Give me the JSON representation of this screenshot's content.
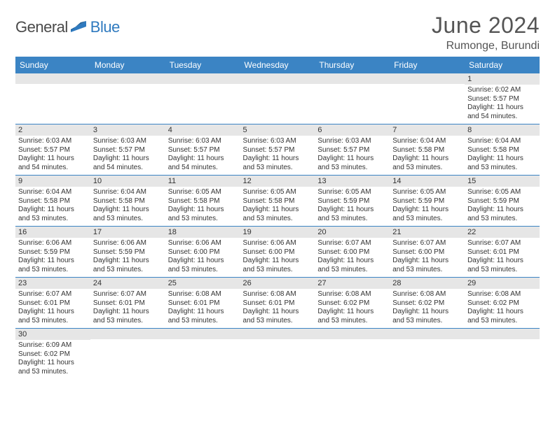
{
  "brand": {
    "part1": "General",
    "part2": "Blue",
    "color_dark": "#4a4a4a",
    "color_blue": "#2f7abf"
  },
  "title": "June 2024",
  "location": "Rumonge, Burundi",
  "header_bg": "#3b84c4",
  "daynum_bg": "#e6e6e6",
  "border_color": "#3b84c4",
  "columns": [
    "Sunday",
    "Monday",
    "Tuesday",
    "Wednesday",
    "Thursday",
    "Friday",
    "Saturday"
  ],
  "weeks": [
    [
      {
        "n": "",
        "lines": []
      },
      {
        "n": "",
        "lines": []
      },
      {
        "n": "",
        "lines": []
      },
      {
        "n": "",
        "lines": []
      },
      {
        "n": "",
        "lines": []
      },
      {
        "n": "",
        "lines": []
      },
      {
        "n": "1",
        "lines": [
          "Sunrise: 6:02 AM",
          "Sunset: 5:57 PM",
          "Daylight: 11 hours and 54 minutes."
        ]
      }
    ],
    [
      {
        "n": "2",
        "lines": [
          "Sunrise: 6:03 AM",
          "Sunset: 5:57 PM",
          "Daylight: 11 hours and 54 minutes."
        ]
      },
      {
        "n": "3",
        "lines": [
          "Sunrise: 6:03 AM",
          "Sunset: 5:57 PM",
          "Daylight: 11 hours and 54 minutes."
        ]
      },
      {
        "n": "4",
        "lines": [
          "Sunrise: 6:03 AM",
          "Sunset: 5:57 PM",
          "Daylight: 11 hours and 54 minutes."
        ]
      },
      {
        "n": "5",
        "lines": [
          "Sunrise: 6:03 AM",
          "Sunset: 5:57 PM",
          "Daylight: 11 hours and 53 minutes."
        ]
      },
      {
        "n": "6",
        "lines": [
          "Sunrise: 6:03 AM",
          "Sunset: 5:57 PM",
          "Daylight: 11 hours and 53 minutes."
        ]
      },
      {
        "n": "7",
        "lines": [
          "Sunrise: 6:04 AM",
          "Sunset: 5:58 PM",
          "Daylight: 11 hours and 53 minutes."
        ]
      },
      {
        "n": "8",
        "lines": [
          "Sunrise: 6:04 AM",
          "Sunset: 5:58 PM",
          "Daylight: 11 hours and 53 minutes."
        ]
      }
    ],
    [
      {
        "n": "9",
        "lines": [
          "Sunrise: 6:04 AM",
          "Sunset: 5:58 PM",
          "Daylight: 11 hours and 53 minutes."
        ]
      },
      {
        "n": "10",
        "lines": [
          "Sunrise: 6:04 AM",
          "Sunset: 5:58 PM",
          "Daylight: 11 hours and 53 minutes."
        ]
      },
      {
        "n": "11",
        "lines": [
          "Sunrise: 6:05 AM",
          "Sunset: 5:58 PM",
          "Daylight: 11 hours and 53 minutes."
        ]
      },
      {
        "n": "12",
        "lines": [
          "Sunrise: 6:05 AM",
          "Sunset: 5:58 PM",
          "Daylight: 11 hours and 53 minutes."
        ]
      },
      {
        "n": "13",
        "lines": [
          "Sunrise: 6:05 AM",
          "Sunset: 5:59 PM",
          "Daylight: 11 hours and 53 minutes."
        ]
      },
      {
        "n": "14",
        "lines": [
          "Sunrise: 6:05 AM",
          "Sunset: 5:59 PM",
          "Daylight: 11 hours and 53 minutes."
        ]
      },
      {
        "n": "15",
        "lines": [
          "Sunrise: 6:05 AM",
          "Sunset: 5:59 PM",
          "Daylight: 11 hours and 53 minutes."
        ]
      }
    ],
    [
      {
        "n": "16",
        "lines": [
          "Sunrise: 6:06 AM",
          "Sunset: 5:59 PM",
          "Daylight: 11 hours and 53 minutes."
        ]
      },
      {
        "n": "17",
        "lines": [
          "Sunrise: 6:06 AM",
          "Sunset: 5:59 PM",
          "Daylight: 11 hours and 53 minutes."
        ]
      },
      {
        "n": "18",
        "lines": [
          "Sunrise: 6:06 AM",
          "Sunset: 6:00 PM",
          "Daylight: 11 hours and 53 minutes."
        ]
      },
      {
        "n": "19",
        "lines": [
          "Sunrise: 6:06 AM",
          "Sunset: 6:00 PM",
          "Daylight: 11 hours and 53 minutes."
        ]
      },
      {
        "n": "20",
        "lines": [
          "Sunrise: 6:07 AM",
          "Sunset: 6:00 PM",
          "Daylight: 11 hours and 53 minutes."
        ]
      },
      {
        "n": "21",
        "lines": [
          "Sunrise: 6:07 AM",
          "Sunset: 6:00 PM",
          "Daylight: 11 hours and 53 minutes."
        ]
      },
      {
        "n": "22",
        "lines": [
          "Sunrise: 6:07 AM",
          "Sunset: 6:01 PM",
          "Daylight: 11 hours and 53 minutes."
        ]
      }
    ],
    [
      {
        "n": "23",
        "lines": [
          "Sunrise: 6:07 AM",
          "Sunset: 6:01 PM",
          "Daylight: 11 hours and 53 minutes."
        ]
      },
      {
        "n": "24",
        "lines": [
          "Sunrise: 6:07 AM",
          "Sunset: 6:01 PM",
          "Daylight: 11 hours and 53 minutes."
        ]
      },
      {
        "n": "25",
        "lines": [
          "Sunrise: 6:08 AM",
          "Sunset: 6:01 PM",
          "Daylight: 11 hours and 53 minutes."
        ]
      },
      {
        "n": "26",
        "lines": [
          "Sunrise: 6:08 AM",
          "Sunset: 6:01 PM",
          "Daylight: 11 hours and 53 minutes."
        ]
      },
      {
        "n": "27",
        "lines": [
          "Sunrise: 6:08 AM",
          "Sunset: 6:02 PM",
          "Daylight: 11 hours and 53 minutes."
        ]
      },
      {
        "n": "28",
        "lines": [
          "Sunrise: 6:08 AM",
          "Sunset: 6:02 PM",
          "Daylight: 11 hours and 53 minutes."
        ]
      },
      {
        "n": "29",
        "lines": [
          "Sunrise: 6:08 AM",
          "Sunset: 6:02 PM",
          "Daylight: 11 hours and 53 minutes."
        ]
      }
    ],
    [
      {
        "n": "30",
        "lines": [
          "Sunrise: 6:09 AM",
          "Sunset: 6:02 PM",
          "Daylight: 11 hours and 53 minutes."
        ]
      },
      {
        "n": "",
        "lines": []
      },
      {
        "n": "",
        "lines": []
      },
      {
        "n": "",
        "lines": []
      },
      {
        "n": "",
        "lines": []
      },
      {
        "n": "",
        "lines": []
      },
      {
        "n": "",
        "lines": []
      }
    ]
  ]
}
